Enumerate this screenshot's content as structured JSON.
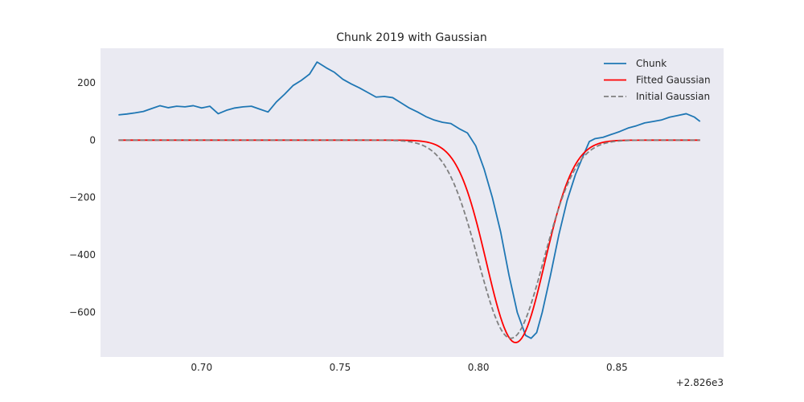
{
  "chart_data": {
    "type": "line",
    "title": "Chunk 2019 with Gaussian",
    "xlabel": "",
    "ylabel": "",
    "x_offset_label": "+2.826e3",
    "xlim": [
      0.6635,
      0.8885
    ],
    "ylim": [
      -755,
      320
    ],
    "x_ticks": [
      0.7,
      0.75,
      0.8,
      0.85
    ],
    "x_tick_labels": [
      "0.70",
      "0.75",
      "0.80",
      "0.85"
    ],
    "y_ticks": [
      200,
      0,
      -200,
      -400,
      -600
    ],
    "y_tick_labels": [
      "200",
      "0",
      "−200",
      "−400",
      "−600"
    ],
    "grid": false,
    "background": "#eaeaf2",
    "legend_position": "top-right",
    "series": [
      {
        "name": "Chunk",
        "color": "#1f77b4",
        "style": "solid",
        "points": [
          [
            0.67,
            88
          ],
          [
            0.673,
            91
          ],
          [
            0.676,
            95
          ],
          [
            0.679,
            100
          ],
          [
            0.682,
            110
          ],
          [
            0.685,
            120
          ],
          [
            0.688,
            113
          ],
          [
            0.691,
            118
          ],
          [
            0.694,
            116
          ],
          [
            0.697,
            120
          ],
          [
            0.7,
            112
          ],
          [
            0.703,
            118
          ],
          [
            0.706,
            92
          ],
          [
            0.709,
            104
          ],
          [
            0.712,
            112
          ],
          [
            0.715,
            116
          ],
          [
            0.718,
            118
          ],
          [
            0.721,
            108
          ],
          [
            0.724,
            98
          ],
          [
            0.727,
            133
          ],
          [
            0.73,
            160
          ],
          [
            0.733,
            190
          ],
          [
            0.736,
            208
          ],
          [
            0.739,
            230
          ],
          [
            0.7417,
            272
          ],
          [
            0.745,
            252
          ],
          [
            0.748,
            236
          ],
          [
            0.751,
            212
          ],
          [
            0.754,
            196
          ],
          [
            0.757,
            182
          ],
          [
            0.76,
            166
          ],
          [
            0.763,
            150
          ],
          [
            0.766,
            152
          ],
          [
            0.769,
            148
          ],
          [
            0.772,
            130
          ],
          [
            0.775,
            112
          ],
          [
            0.778,
            98
          ],
          [
            0.781,
            82
          ],
          [
            0.784,
            70
          ],
          [
            0.787,
            62
          ],
          [
            0.79,
            58
          ],
          [
            0.793,
            40
          ],
          [
            0.796,
            25
          ],
          [
            0.799,
            -20
          ],
          [
            0.802,
            -100
          ],
          [
            0.805,
            -200
          ],
          [
            0.808,
            -320
          ],
          [
            0.811,
            -470
          ],
          [
            0.814,
            -600
          ],
          [
            0.817,
            -680
          ],
          [
            0.819,
            -690
          ],
          [
            0.821,
            -670
          ],
          [
            0.823,
            -600
          ],
          [
            0.826,
            -470
          ],
          [
            0.829,
            -330
          ],
          [
            0.832,
            -210
          ],
          [
            0.835,
            -120
          ],
          [
            0.838,
            -50
          ],
          [
            0.84,
            -5
          ],
          [
            0.842,
            5
          ],
          [
            0.845,
            10
          ],
          [
            0.848,
            20
          ],
          [
            0.851,
            30
          ],
          [
            0.854,
            42
          ],
          [
            0.857,
            50
          ],
          [
            0.86,
            60
          ],
          [
            0.863,
            65
          ],
          [
            0.866,
            70
          ],
          [
            0.869,
            80
          ],
          [
            0.872,
            86
          ],
          [
            0.875,
            92
          ],
          [
            0.878,
            80
          ],
          [
            0.88,
            65
          ]
        ]
      },
      {
        "name": "Fitted Gaussian",
        "color": "#ff0000",
        "style": "solid",
        "amplitude": -705,
        "center": 0.8134,
        "sigma": 0.0105
      },
      {
        "name": "Initial Gaussian",
        "color": "#808080",
        "style": "dashed",
        "amplitude": -690,
        "center": 0.8117,
        "sigma": 0.0118
      }
    ]
  }
}
